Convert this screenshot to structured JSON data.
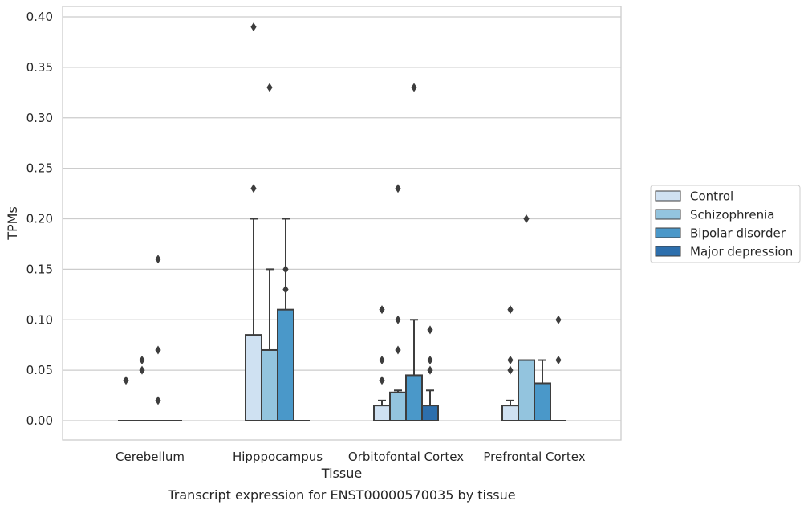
{
  "caption": "Transcript expression for ENST00000570035 by tissue",
  "chart_data": {
    "type": "bar",
    "subtype": "grouped-box-plot",
    "title": "",
    "xlabel": "Tissue",
    "ylabel": "TPMs",
    "ylim": [
      -0.019,
      0.41
    ],
    "yticks": [
      "0.00",
      "0.05",
      "0.10",
      "0.15",
      "0.20",
      "0.25",
      "0.30",
      "0.35",
      "0.40"
    ],
    "grid": "horizontal",
    "legend_position": "right",
    "categories": [
      "Cerebellum",
      "Hipppocampus",
      "Orbitofontal Cortex",
      "Prefrontal Cortex"
    ],
    "series": [
      {
        "name": "Control",
        "color": "#cfe1f2",
        "boxes": [
          {
            "q1": 0,
            "median": 0,
            "q3": 0,
            "whisker_low": 0,
            "whisker_high": 0,
            "fliers": [
              0.04
            ]
          },
          {
            "q1": 0,
            "median": 0,
            "q3": 0.085,
            "whisker_low": 0,
            "whisker_high": 0.2,
            "fliers": [
              0.23,
              0.39
            ]
          },
          {
            "q1": 0,
            "median": 0,
            "q3": 0.015,
            "whisker_low": 0,
            "whisker_high": 0.02,
            "fliers": [
              0.04,
              0.06,
              0.11
            ]
          },
          {
            "q1": 0,
            "median": 0,
            "q3": 0.015,
            "whisker_low": 0,
            "whisker_high": 0.02,
            "fliers": [
              0.05,
              0.06,
              0.11
            ]
          }
        ]
      },
      {
        "name": "Schizophrenia",
        "color": "#93c4de",
        "boxes": [
          {
            "q1": 0,
            "median": 0,
            "q3": 0,
            "whisker_low": 0,
            "whisker_high": 0,
            "fliers": [
              0.05,
              0.06
            ]
          },
          {
            "q1": 0,
            "median": 0,
            "q3": 0.07,
            "whisker_low": 0,
            "whisker_high": 0.15,
            "fliers": [
              0.33
            ]
          },
          {
            "q1": 0,
            "median": 0,
            "q3": 0.028,
            "whisker_low": 0,
            "whisker_high": 0.03,
            "fliers": [
              0.07,
              0.1,
              0.23
            ]
          },
          {
            "q1": 0,
            "median": 0,
            "q3": 0.06,
            "whisker_low": 0,
            "whisker_high": 0.06,
            "fliers": [
              0.2
            ]
          }
        ]
      },
      {
        "name": "Bipolar disorder",
        "color": "#4a98c9",
        "boxes": [
          {
            "q1": 0,
            "median": 0,
            "q3": 0,
            "whisker_low": 0,
            "whisker_high": 0,
            "fliers": [
              0.02,
              0.07,
              0.16
            ]
          },
          {
            "q1": 0,
            "median": 0,
            "q3": 0.11,
            "whisker_low": 0,
            "whisker_high": 0.2,
            "fliers": [
              0.13,
              0.15
            ]
          },
          {
            "q1": 0,
            "median": 0,
            "q3": 0.045,
            "whisker_low": 0,
            "whisker_high": 0.1,
            "fliers": [
              0.33
            ]
          },
          {
            "q1": 0,
            "median": 0,
            "q3": 0.037,
            "whisker_low": 0,
            "whisker_high": 0.06,
            "fliers": []
          }
        ]
      },
      {
        "name": "Major depression",
        "color": "#2d6fad",
        "boxes": [
          {
            "q1": 0,
            "median": 0,
            "q3": 0,
            "whisker_low": 0,
            "whisker_high": 0,
            "fliers": []
          },
          {
            "q1": 0,
            "median": 0,
            "q3": 0,
            "whisker_low": 0,
            "whisker_high": 0,
            "fliers": []
          },
          {
            "q1": 0,
            "median": 0,
            "q3": 0.015,
            "whisker_low": 0,
            "whisker_high": 0.03,
            "fliers": [
              0.05,
              0.06,
              0.09
            ]
          },
          {
            "q1": 0,
            "median": 0,
            "q3": 0,
            "whisker_low": 0,
            "whisker_high": 0,
            "fliers": [
              0.06,
              0.1
            ]
          }
        ]
      }
    ]
  }
}
